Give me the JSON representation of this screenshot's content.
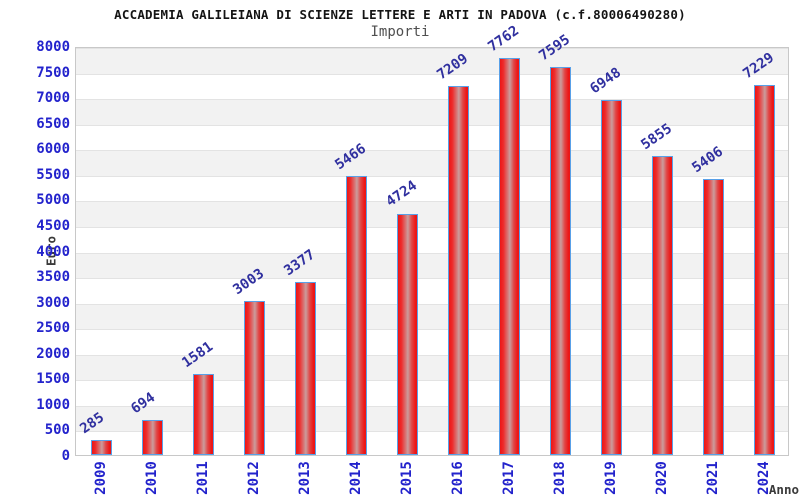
{
  "chart_data": {
    "type": "bar",
    "title": "ACCADEMIA GALILEIANA DI SCIENZE LETTERE E ARTI IN PADOVA (c.f.80006490280)",
    "subtitle": "Importi",
    "xlabel": "Anno",
    "ylabel": "Euro",
    "categories": [
      "2009",
      "2010",
      "2011",
      "2012",
      "2013",
      "2014",
      "2015",
      "2016",
      "2017",
      "2018",
      "2019",
      "2020",
      "2021",
      "2024"
    ],
    "values": [
      285,
      694,
      1581,
      3003,
      3377,
      5466,
      4724,
      7209,
      7762,
      7595,
      6948,
      5855,
      5406,
      7229
    ],
    "ylim": [
      0,
      8000
    ],
    "ytick_step": 500,
    "grid": "horizontal-bands",
    "legend": "none",
    "colors": {
      "bar_fill": "#ec1616",
      "bar_highlight": "#cb9c9c",
      "bar_border": "#58a0e8",
      "tick_label": "#2323cc",
      "value_label": "#30309f",
      "band_shade": "#f2f2f2",
      "grid_line": "#e3e3e3",
      "plot_border": "#c8c8c8",
      "title": "#141414",
      "subtitle": "#4f4f4f",
      "axis_title": "#3a3a3a"
    }
  }
}
